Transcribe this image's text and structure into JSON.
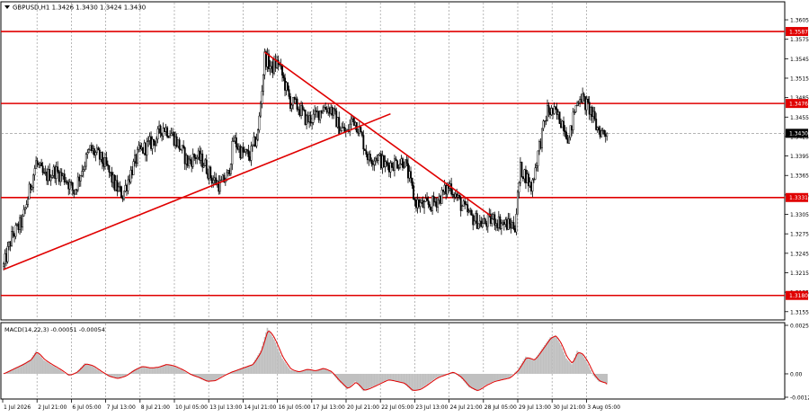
{
  "window": {
    "symbol_line": "GBPUSD,H1  1.3426 1.3430 1.3424 1.3430",
    "menu_arrow": "triangle-down-icon"
  },
  "colors": {
    "background": "#ffffff",
    "candles": "#000000",
    "lines": "#e00000",
    "level_label_bg": "#e00000",
    "current_price_bg": "#000000",
    "grid": "#9a9a9a",
    "histogram": "#c0c0c0",
    "signal": "#e00000"
  },
  "price_axis": {
    "ticks": [
      "1.3605",
      "1.3575",
      "1.3545",
      "1.3515",
      "1.3485",
      "1.3455",
      "1.3425",
      "1.3395",
      "1.3365",
      "1.3335",
      "1.3305",
      "1.3275",
      "1.3245",
      "1.3215",
      "1.3185",
      "1.3155"
    ],
    "range": [
      1.3145,
      1.363
    ]
  },
  "levels": [
    {
      "price": 1.3587,
      "label": "1.3587"
    },
    {
      "price": 1.3476,
      "label": "1.3476"
    },
    {
      "price": 1.3331,
      "label": "1.3331"
    },
    {
      "price": 1.318,
      "label": "1.3180"
    }
  ],
  "current_price": {
    "price": 1.343,
    "label": "1.3430"
  },
  "trendlines": [
    {
      "name": "ascending-trendline",
      "from": {
        "bar": 0,
        "price": 1.322
      },
      "to": {
        "bar": 286,
        "price": 1.346
      }
    },
    {
      "name": "descending-trendline",
      "from": {
        "bar": 193,
        "price": 1.3555
      },
      "to": {
        "bar": 360,
        "price": 1.3303
      }
    }
  ],
  "time_axis": {
    "labels": [
      "1 Jul 2026",
      "2 Jul 21:00",
      "6 Jul 05:00",
      "7 Jul 13:00",
      "8 Jul 21:00",
      "10 Jul 05:00",
      "13 Jul 13:00",
      "14 Jul 21:00",
      "16 Jul 05:00",
      "17 Jul 13:00",
      "20 Jul 21:00",
      "22 Jul 05:00",
      "23 Jul 13:00",
      "24 Jul 21:00",
      "28 Jul 05:00",
      "29 Jul 13:00",
      "30 Jul 21:00",
      "3 Aug 05:00"
    ]
  },
  "macd": {
    "label": "MACD(14,22,3) -0.00051 -0.00054",
    "ticks": [
      "0.00253",
      "0.00",
      "-0.00122"
    ],
    "range": [
      -0.00122,
      0.00253
    ]
  },
  "chart_data": {
    "type": "candlestick",
    "symbol": "GBPUSD",
    "timeframe": "H1",
    "last_ohlc": {
      "open": 1.3426,
      "high": 1.343,
      "low": 1.3424,
      "close": 1.343
    },
    "close_path": [
      [
        0,
        1.3225
      ],
      [
        6,
        1.327
      ],
      [
        14,
        1.3295
      ],
      [
        20,
        1.335
      ],
      [
        24,
        1.3385
      ],
      [
        30,
        1.3362
      ],
      [
        38,
        1.3372
      ],
      [
        46,
        1.336
      ],
      [
        52,
        1.334
      ],
      [
        58,
        1.3375
      ],
      [
        64,
        1.3405
      ],
      [
        70,
        1.3395
      ],
      [
        76,
        1.3378
      ],
      [
        82,
        1.335
      ],
      [
        88,
        1.3335
      ],
      [
        94,
        1.337
      ],
      [
        100,
        1.34
      ],
      [
        106,
        1.341
      ],
      [
        112,
        1.342
      ],
      [
        118,
        1.344
      ],
      [
        124,
        1.343
      ],
      [
        130,
        1.341
      ],
      [
        136,
        1.3385
      ],
      [
        142,
        1.3395
      ],
      [
        148,
        1.3385
      ],
      [
        154,
        1.336
      ],
      [
        160,
        1.335
      ],
      [
        166,
        1.3365
      ],
      [
        170,
        1.342
      ],
      [
        176,
        1.34
      ],
      [
        182,
        1.3395
      ],
      [
        188,
        1.343
      ],
      [
        193,
        1.3548
      ],
      [
        198,
        1.353
      ],
      [
        203,
        1.354
      ],
      [
        208,
        1.3505
      ],
      [
        212,
        1.3478
      ],
      [
        218,
        1.347
      ],
      [
        224,
        1.345
      ],
      [
        230,
        1.3455
      ],
      [
        236,
        1.347
      ],
      [
        242,
        1.3468
      ],
      [
        248,
        1.344
      ],
      [
        254,
        1.343
      ],
      [
        258,
        1.3455
      ],
      [
        262,
        1.344
      ],
      [
        266,
        1.3415
      ],
      [
        270,
        1.339
      ],
      [
        276,
        1.3395
      ],
      [
        282,
        1.338
      ],
      [
        290,
        1.3385
      ],
      [
        296,
        1.3388
      ],
      [
        300,
        1.336
      ],
      [
        304,
        1.3325
      ],
      [
        310,
        1.3318
      ],
      [
        316,
        1.332
      ],
      [
        322,
        1.333
      ],
      [
        330,
        1.335
      ],
      [
        338,
        1.332
      ],
      [
        346,
        1.33
      ],
      [
        354,
        1.329
      ],
      [
        362,
        1.3298
      ],
      [
        370,
        1.329
      ],
      [
        378,
        1.3288
      ],
      [
        382,
        1.3375
      ],
      [
        386,
        1.3365
      ],
      [
        390,
        1.3345
      ],
      [
        396,
        1.341
      ],
      [
        402,
        1.3465
      ],
      [
        408,
        1.346
      ],
      [
        414,
        1.3445
      ],
      [
        418,
        1.342
      ],
      [
        422,
        1.3465
      ],
      [
        426,
        1.349
      ],
      [
        430,
        1.3475
      ],
      [
        434,
        1.3465
      ],
      [
        438,
        1.344
      ],
      [
        442,
        1.3432
      ],
      [
        446,
        1.343
      ]
    ],
    "macd_histogram_path": [
      [
        0,
        2e-05
      ],
      [
        8,
        0.0003
      ],
      [
        14,
        0.0005
      ],
      [
        20,
        0.00075
      ],
      [
        24,
        0.0012
      ],
      [
        30,
        0.0007
      ],
      [
        36,
        0.00045
      ],
      [
        42,
        0.0002
      ],
      [
        48,
        -0.0001
      ],
      [
        54,
        0.0001
      ],
      [
        60,
        0.00055
      ],
      [
        66,
        0.0004
      ],
      [
        72,
        0.0001
      ],
      [
        78,
        -0.00015
      ],
      [
        84,
        -0.00025
      ],
      [
        90,
        -0.0001
      ],
      [
        96,
        0.0002
      ],
      [
        102,
        0.0004
      ],
      [
        108,
        0.0003
      ],
      [
        114,
        0.00035
      ],
      [
        120,
        0.0005
      ],
      [
        126,
        0.0004
      ],
      [
        132,
        0.0002
      ],
      [
        138,
        -5e-05
      ],
      [
        144,
        -0.0002
      ],
      [
        150,
        -0.0004
      ],
      [
        156,
        -0.00035
      ],
      [
        162,
        -0.0001
      ],
      [
        168,
        0.0001
      ],
      [
        176,
        0.0003
      ],
      [
        184,
        0.0005
      ],
      [
        190,
        0.0012
      ],
      [
        195,
        0.0024
      ],
      [
        200,
        0.0018
      ],
      [
        206,
        0.0008
      ],
      [
        212,
        0.0002
      ],
      [
        218,
        0.0001
      ],
      [
        224,
        0.00025
      ],
      [
        230,
        0.00015
      ],
      [
        236,
        0.0003
      ],
      [
        242,
        0.0001
      ],
      [
        248,
        -0.0004
      ],
      [
        254,
        -0.0008
      ],
      [
        260,
        -0.0004
      ],
      [
        266,
        -0.0009
      ],
      [
        272,
        -0.0007
      ],
      [
        278,
        -0.0005
      ],
      [
        284,
        -0.0003
      ],
      [
        290,
        -0.0004
      ],
      [
        296,
        -0.0005
      ],
      [
        302,
        -0.0009
      ],
      [
        308,
        -0.0008
      ],
      [
        314,
        -0.0005
      ],
      [
        320,
        -0.0002
      ],
      [
        326,
        -5e-05
      ],
      [
        332,
        0.0001
      ],
      [
        338,
        -0.0002
      ],
      [
        344,
        -0.0007
      ],
      [
        350,
        -0.0009
      ],
      [
        356,
        -0.0006
      ],
      [
        362,
        -0.0004
      ],
      [
        368,
        -0.0003
      ],
      [
        374,
        -0.0002
      ],
      [
        380,
        0.0002
      ],
      [
        386,
        0.0009
      ],
      [
        392,
        0.0007
      ],
      [
        398,
        0.0013
      ],
      [
        404,
        0.0019
      ],
      [
        408,
        0.002
      ],
      [
        412,
        0.0015
      ],
      [
        416,
        0.0008
      ],
      [
        420,
        0.0005
      ],
      [
        424,
        0.0012
      ],
      [
        428,
        0.001
      ],
      [
        432,
        0.0005
      ],
      [
        436,
        -0.0001
      ],
      [
        440,
        -0.0004
      ],
      [
        446,
        -0.00051
      ]
    ],
    "macd_signal_value": -0.00054
  }
}
